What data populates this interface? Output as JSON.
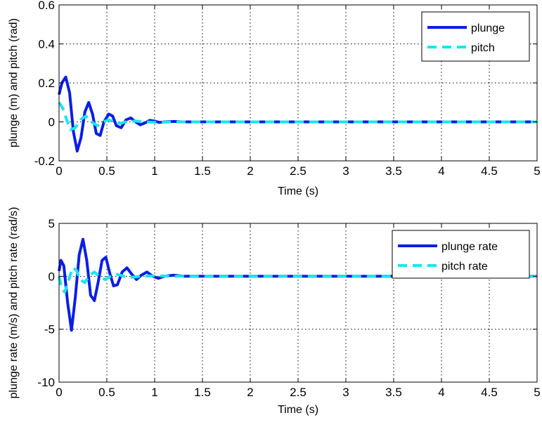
{
  "chart_data": [
    {
      "type": "line",
      "title": "",
      "xlabel": "Time (s)",
      "ylabel": "plunge (m) and pitch (rad)",
      "xlim": [
        0,
        5
      ],
      "ylim": [
        -0.2,
        0.6
      ],
      "xticks": [
        0,
        0.5,
        1,
        1.5,
        2,
        2.5,
        3,
        3.5,
        4,
        4.5,
        5
      ],
      "xtick_labels": [
        "0",
        "0.5",
        "1",
        "1.5",
        "2",
        "2.5",
        "3",
        "3.5",
        "4",
        "4.5",
        "5"
      ],
      "yticks": [
        -0.2,
        0,
        0.2,
        0.4,
        0.6
      ],
      "ytick_labels": [
        "-0.2",
        "0",
        "0.2",
        "0.4",
        "0.6"
      ],
      "grid": true,
      "legend_position": "top-right",
      "series": [
        {
          "name": "plunge",
          "color": "#0a1ee6",
          "style": "solid",
          "x": [
            0,
            0.03,
            0.07,
            0.11,
            0.15,
            0.19,
            0.23,
            0.27,
            0.31,
            0.35,
            0.39,
            0.43,
            0.47,
            0.52,
            0.56,
            0.6,
            0.65,
            0.7,
            0.75,
            0.8,
            0.85,
            0.9,
            0.95,
            1.0,
            1.05,
            1.1,
            1.2,
            1.3,
            1.5,
            1.8,
            2.0,
            3.0,
            4.0,
            5.0
          ],
          "y": [
            0.14,
            0.2,
            0.23,
            0.15,
            -0.05,
            -0.15,
            -0.08,
            0.05,
            0.1,
            0.04,
            -0.06,
            -0.07,
            0.0,
            0.04,
            0.03,
            -0.02,
            -0.03,
            0.01,
            0.02,
            0.0,
            -0.015,
            -0.005,
            0.008,
            0.004,
            -0.003,
            0.0,
            0.002,
            0.0,
            0.0,
            0.0,
            0.0,
            0.0,
            0.0,
            0.0
          ]
        },
        {
          "name": "pitch",
          "color": "#17e6ee",
          "style": "dashed",
          "x": [
            0,
            0.04,
            0.08,
            0.12,
            0.17,
            0.22,
            0.28,
            0.34,
            0.4,
            0.46,
            0.52,
            0.58,
            0.64,
            0.7,
            0.8,
            0.9,
            1.0,
            1.2,
            1.5,
            2.0,
            3.0,
            4.0,
            5.0
          ],
          "y": [
            0.1,
            0.07,
            0.01,
            -0.04,
            -0.03,
            0.01,
            0.03,
            0.0,
            -0.02,
            0.0,
            0.01,
            0.0,
            -0.008,
            0.0,
            0.004,
            0.0,
            -0.002,
            0.0,
            0.0,
            0.0,
            0.0,
            0.0,
            0.0
          ]
        }
      ]
    },
    {
      "type": "line",
      "title": "",
      "xlabel": "Time (s)",
      "ylabel": "plunge rate (m/s) and pitch rate (rad/s)",
      "xlim": [
        0,
        5
      ],
      "ylim": [
        -10,
        5
      ],
      "xticks": [
        0,
        0.5,
        1,
        1.5,
        2,
        2.5,
        3,
        3.5,
        4,
        4.5,
        5
      ],
      "xtick_labels": [
        "0",
        "0.5",
        "1",
        "1.5",
        "2",
        "2.5",
        "3",
        "3.5",
        "4",
        "4.5",
        "5"
      ],
      "yticks": [
        -10,
        -5,
        0,
        5
      ],
      "ytick_labels": [
        "-10",
        "-5",
        "0",
        "5"
      ],
      "grid": true,
      "legend_position": "top-right",
      "series": [
        {
          "name": "plunge rate",
          "color": "#0a1ee6",
          "style": "solid",
          "x": [
            0,
            0.02,
            0.05,
            0.09,
            0.13,
            0.17,
            0.21,
            0.25,
            0.29,
            0.33,
            0.37,
            0.41,
            0.45,
            0.49,
            0.53,
            0.57,
            0.61,
            0.66,
            0.71,
            0.76,
            0.81,
            0.86,
            0.92,
            0.98,
            1.04,
            1.1,
            1.2,
            1.3,
            1.5,
            1.8,
            2.0,
            3.0,
            4.0,
            5.0
          ],
          "y": [
            0.5,
            1.5,
            1.0,
            -2.5,
            -5.1,
            -2.0,
            2.0,
            3.5,
            1.5,
            -1.8,
            -2.3,
            -0.5,
            1.5,
            1.8,
            0.3,
            -0.9,
            -0.8,
            0.4,
            0.8,
            0.2,
            -0.3,
            0.1,
            0.4,
            0.0,
            -0.2,
            0.0,
            0.1,
            0.0,
            0.0,
            0.0,
            0.0,
            0.0,
            0.0,
            0.0
          ]
        },
        {
          "name": "pitch rate",
          "color": "#17e6ee",
          "style": "dashed",
          "x": [
            0,
            0.03,
            0.06,
            0.1,
            0.14,
            0.18,
            0.22,
            0.27,
            0.32,
            0.37,
            0.42,
            0.48,
            0.54,
            0.6,
            0.68,
            0.76,
            0.86,
            1.0,
            1.2,
            1.5,
            2.0,
            3.0,
            4.0,
            5.0
          ],
          "y": [
            0.0,
            -1.2,
            -1.5,
            -0.4,
            0.8,
            0.6,
            -0.3,
            -0.6,
            0.1,
            0.4,
            0.0,
            -0.3,
            0.0,
            0.2,
            0.0,
            -0.1,
            0.0,
            0.05,
            0.0,
            0.0,
            0.0,
            0.0,
            0.0,
            0.0
          ]
        }
      ]
    }
  ]
}
